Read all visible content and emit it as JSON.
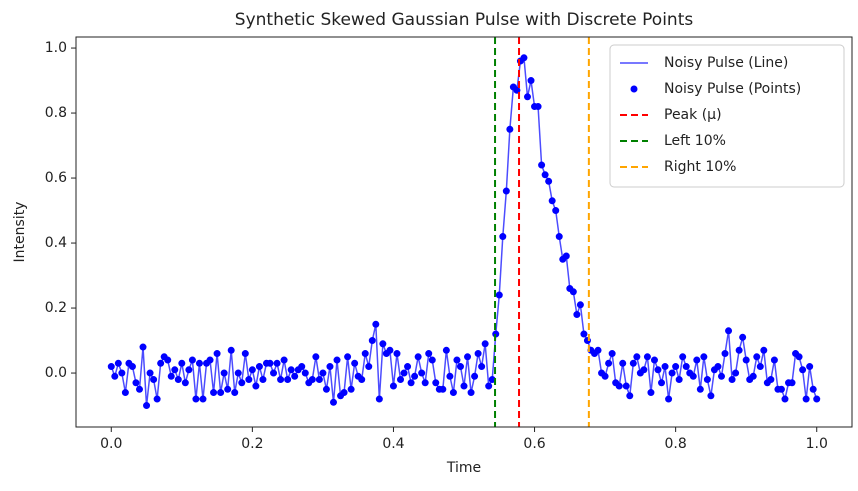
{
  "chart_data": {
    "type": "line",
    "title": "Synthetic Skewed Gaussian Pulse with Discrete Points",
    "x_label": "Time",
    "y_label": "Intensity",
    "x": [
      0,
      0.005,
      0.01,
      0.015,
      0.02,
      0.025,
      0.03,
      0.035,
      0.04,
      0.045,
      0.05,
      0.055,
      0.06,
      0.065,
      0.07,
      0.075,
      0.08,
      0.085,
      0.09,
      0.095,
      0.1,
      0.105,
      0.11,
      0.115,
      0.12,
      0.125,
      0.13,
      0.135,
      0.14,
      0.145,
      0.15,
      0.155,
      0.16,
      0.165,
      0.17,
      0.175,
      0.18,
      0.185,
      0.19,
      0.195,
      0.2,
      0.205,
      0.21,
      0.215,
      0.22,
      0.225,
      0.23,
      0.235,
      0.24,
      0.245,
      0.25,
      0.255,
      0.26,
      0.265,
      0.27,
      0.275,
      0.28,
      0.285,
      0.29,
      0.295,
      0.3,
      0.305,
      0.31,
      0.315,
      0.32,
      0.325,
      0.33,
      0.335,
      0.34,
      0.345,
      0.35,
      0.355,
      0.36,
      0.365,
      0.37,
      0.375,
      0.38,
      0.385,
      0.39,
      0.395,
      0.4,
      0.405,
      0.41,
      0.415,
      0.42,
      0.425,
      0.43,
      0.435,
      0.44,
      0.445,
      0.45,
      0.455,
      0.46,
      0.465,
      0.47,
      0.475,
      0.48,
      0.485,
      0.49,
      0.495,
      0.5,
      0.505,
      0.51,
      0.515,
      0.52,
      0.525,
      0.53,
      0.535,
      0.54,
      0.545,
      0.55,
      0.555,
      0.56,
      0.565,
      0.57,
      0.575,
      0.58,
      0.585,
      0.59,
      0.595,
      0.6,
      0.605,
      0.61,
      0.615,
      0.62,
      0.625,
      0.63,
      0.635,
      0.64,
      0.645,
      0.65,
      0.655,
      0.66,
      0.665,
      0.67,
      0.675,
      0.68,
      0.685,
      0.69,
      0.695,
      0.7,
      0.705,
      0.71,
      0.715,
      0.72,
      0.725,
      0.73,
      0.735,
      0.74,
      0.745,
      0.75,
      0.755,
      0.76,
      0.765,
      0.77,
      0.775,
      0.78,
      0.785,
      0.79,
      0.795,
      0.8,
      0.805,
      0.81,
      0.815,
      0.82,
      0.825,
      0.83,
      0.835,
      0.84,
      0.845,
      0.85,
      0.855,
      0.86,
      0.865,
      0.87,
      0.875,
      0.88,
      0.885,
      0.89,
      0.895,
      0.9,
      0.905,
      0.91,
      0.915,
      0.92,
      0.925,
      0.93,
      0.935,
      0.94,
      0.945,
      0.95,
      0.955,
      0.96,
      0.965,
      0.97,
      0.975,
      0.98,
      0.985,
      0.99,
      0.995,
      1
    ],
    "series": [
      {
        "name": "Noisy Pulse (Line)",
        "style": "line",
        "color": "#0000ff",
        "alpha": 0.7,
        "values": [
          0.02,
          -0.01,
          0.03,
          0.0,
          -0.06,
          0.03,
          0.02,
          -0.03,
          -0.05,
          0.08,
          -0.1,
          0.0,
          -0.02,
          -0.08,
          0.03,
          0.05,
          0.04,
          -0.01,
          0.01,
          -0.02,
          0.03,
          -0.03,
          0.01,
          0.04,
          -0.08,
          0.03,
          -0.08,
          0.03,
          0.04,
          -0.06,
          0.06,
          -0.06,
          0.0,
          -0.05,
          0.07,
          -0.06,
          0.0,
          -0.03,
          0.06,
          -0.02,
          0.01,
          -0.04,
          0.02,
          -0.02,
          0.03,
          0.03,
          0.0,
          0.03,
          -0.02,
          0.04,
          -0.02,
          0.01,
          -0.01,
          0.01,
          0.02,
          0.0,
          -0.03,
          -0.02,
          0.05,
          -0.02,
          0.0,
          -0.05,
          0.02,
          -0.09,
          0.04,
          -0.07,
          -0.06,
          0.05,
          -0.05,
          0.03,
          -0.01,
          -0.02,
          0.06,
          0.02,
          0.1,
          0.15,
          -0.08,
          0.09,
          0.06,
          0.07,
          -0.04,
          0.06,
          -0.02,
          0.0,
          0.02,
          -0.03,
          -0.01,
          0.05,
          0.0,
          -0.03,
          0.06,
          0.04,
          -0.03,
          -0.05,
          -0.05,
          0.07,
          -0.01,
          -0.06,
          0.04,
          0.02,
          -0.04,
          0.05,
          -0.06,
          -0.01,
          0.06,
          0.02,
          0.09,
          -0.04,
          -0.02,
          0.12,
          0.24,
          0.42,
          0.56,
          0.75,
          0.88,
          0.87,
          0.96,
          0.97,
          0.85,
          0.9,
          0.82,
          0.82,
          0.64,
          0.61,
          0.59,
          0.53,
          0.5,
          0.42,
          0.35,
          0.36,
          0.26,
          0.25,
          0.18,
          0.21,
          0.12,
          0.1,
          0.07,
          0.06,
          0.07,
          0.0,
          -0.01,
          0.03,
          0.06,
          -0.03,
          -0.04,
          0.03,
          -0.04,
          -0.07,
          0.03,
          0.05,
          0.0,
          0.01,
          0.05,
          -0.06,
          0.04,
          0.01,
          -0.03,
          0.02,
          -0.08,
          0.0,
          0.02,
          -0.02,
          0.05,
          0.02,
          0.0,
          -0.01,
          0.04,
          -0.05,
          0.05,
          -0.02,
          -0.07,
          0.01,
          0.02,
          -0.01,
          0.06,
          0.13,
          -0.02,
          0.0,
          0.07,
          0.11,
          0.04,
          -0.02,
          -0.01,
          0.05,
          0.02,
          0.07,
          -0.03,
          -0.02,
          0.04,
          -0.05,
          -0.05,
          -0.08,
          -0.03,
          -0.03,
          0.06,
          0.05,
          0.01,
          -0.08,
          0.02,
          -0.05,
          -0.08
        ]
      },
      {
        "name": "Noisy Pulse (Points)",
        "style": "points",
        "color": "#0000ff",
        "values": [
          0.02,
          -0.01,
          0.03,
          0.0,
          -0.06,
          0.03,
          0.02,
          -0.03,
          -0.05,
          0.08,
          -0.1,
          0.0,
          -0.02,
          -0.08,
          0.03,
          0.05,
          0.04,
          -0.01,
          0.01,
          -0.02,
          0.03,
          -0.03,
          0.01,
          0.04,
          -0.08,
          0.03,
          -0.08,
          0.03,
          0.04,
          -0.06,
          0.06,
          -0.06,
          0.0,
          -0.05,
          0.07,
          -0.06,
          0.0,
          -0.03,
          0.06,
          -0.02,
          0.01,
          -0.04,
          0.02,
          -0.02,
          0.03,
          0.03,
          0.0,
          0.03,
          -0.02,
          0.04,
          -0.02,
          0.01,
          -0.01,
          0.01,
          0.02,
          0.0,
          -0.03,
          -0.02,
          0.05,
          -0.02,
          0.0,
          -0.05,
          0.02,
          -0.09,
          0.04,
          -0.07,
          -0.06,
          0.05,
          -0.05,
          0.03,
          -0.01,
          -0.02,
          0.06,
          0.02,
          0.1,
          0.15,
          -0.08,
          0.09,
          0.06,
          0.07,
          -0.04,
          0.06,
          -0.02,
          0.0,
          0.02,
          -0.03,
          -0.01,
          0.05,
          0.0,
          -0.03,
          0.06,
          0.04,
          -0.03,
          -0.05,
          -0.05,
          0.07,
          -0.01,
          -0.06,
          0.04,
          0.02,
          -0.04,
          0.05,
          -0.06,
          -0.01,
          0.06,
          0.02,
          0.09,
          -0.04,
          -0.02,
          0.12,
          0.24,
          0.42,
          0.56,
          0.75,
          0.88,
          0.87,
          0.96,
          0.97,
          0.85,
          0.9,
          0.82,
          0.82,
          0.64,
          0.61,
          0.59,
          0.53,
          0.5,
          0.42,
          0.35,
          0.36,
          0.26,
          0.25,
          0.18,
          0.21,
          0.12,
          0.1,
          0.07,
          0.06,
          0.07,
          0.0,
          -0.01,
          0.03,
          0.06,
          -0.03,
          -0.04,
          0.03,
          -0.04,
          -0.07,
          0.03,
          0.05,
          0.0,
          0.01,
          0.05,
          -0.06,
          0.04,
          0.01,
          -0.03,
          0.02,
          -0.08,
          0.0,
          0.02,
          -0.02,
          0.05,
          0.02,
          0.0,
          -0.01,
          0.04,
          -0.05,
          0.05,
          -0.02,
          -0.07,
          0.01,
          0.02,
          -0.01,
          0.06,
          0.13,
          -0.02,
          0.0,
          0.07,
          0.11,
          0.04,
          -0.02,
          -0.01,
          0.05,
          0.02,
          0.07,
          -0.03,
          -0.02,
          0.04,
          -0.05,
          -0.05,
          -0.08,
          -0.03,
          -0.03,
          0.06,
          0.05,
          0.01,
          -0.08,
          0.02,
          -0.05,
          -0.08
        ]
      }
    ],
    "vlines": [
      {
        "name": "Peak (μ)",
        "x": 0.578,
        "color": "#ff0000"
      },
      {
        "name": "Left 10%",
        "x": 0.544,
        "color": "#008000"
      },
      {
        "name": "Right 10%",
        "x": 0.677,
        "color": "#ffa500"
      }
    ],
    "xlim": [
      -0.05,
      1.05
    ],
    "ylim": [
      -0.166,
      1.034
    ],
    "xticks": [
      {
        "value": 0,
        "label": "0.0"
      },
      0.2,
      0.4,
      0.6,
      0.8,
      {
        "value": 1,
        "label": "1.0"
      }
    ],
    "yticks": [
      {
        "value": 0,
        "label": "0.0"
      },
      0.2,
      0.4,
      0.6,
      0.8,
      {
        "value": 1,
        "label": "1.0"
      }
    ],
    "legend": "upper right"
  }
}
